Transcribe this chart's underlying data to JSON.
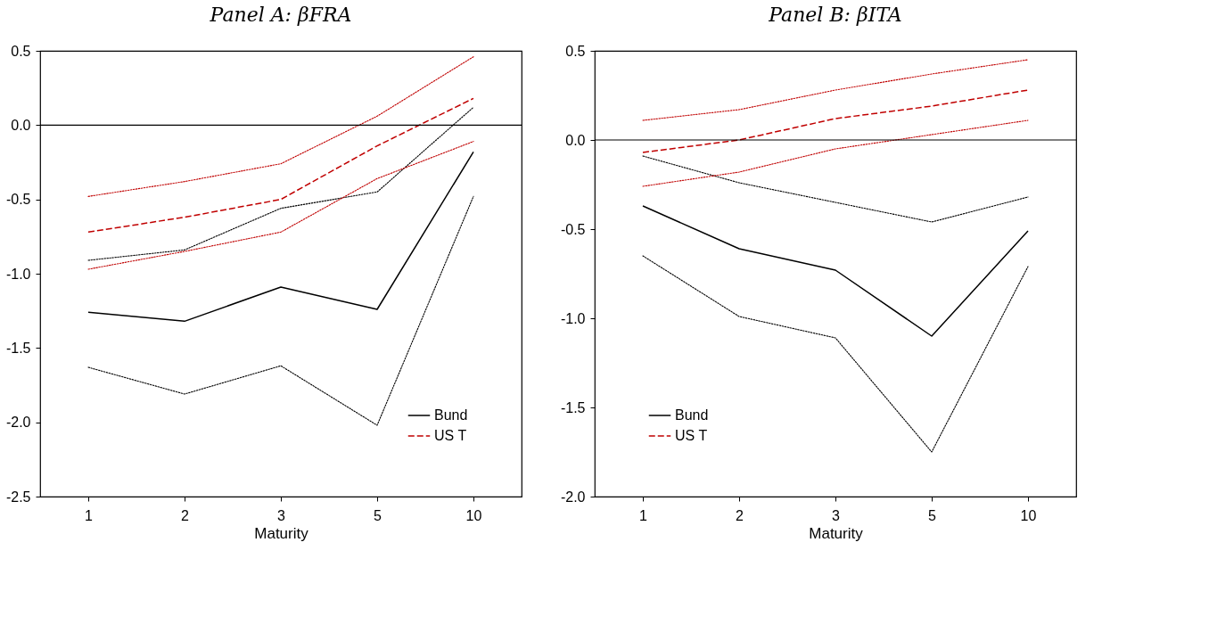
{
  "chart_data": [
    {
      "type": "line",
      "title": "Panel A: βFRA",
      "xlabel": "Maturity",
      "categories": [
        "1",
        "2",
        "3",
        "5",
        "10"
      ],
      "series": [
        {
          "name": "Bund",
          "color": "#000000",
          "line_style": "solid",
          "values": [
            -1.26,
            -1.32,
            -1.09,
            -1.24,
            -0.18
          ]
        },
        {
          "name": "US T",
          "color": "#c00000",
          "line_style": "dashed",
          "values": [
            -0.72,
            -0.62,
            -0.5,
            -0.14,
            0.18
          ]
        },
        {
          "color": "#000000",
          "line_style": "dotted",
          "values": [
            -1.63,
            -1.81,
            -1.62,
            -2.02,
            -0.48
          ]
        },
        {
          "color": "#000000",
          "line_style": "dotted",
          "values": [
            -0.91,
            -0.84,
            -0.56,
            -0.45,
            0.12
          ]
        },
        {
          "color": "#c00000",
          "line_style": "dotted",
          "values": [
            -0.97,
            -0.85,
            -0.72,
            -0.36,
            -0.11
          ]
        },
        {
          "color": "#c00000",
          "line_style": "dotted",
          "values": [
            -0.48,
            -0.38,
            -0.26,
            0.06,
            0.46
          ]
        }
      ],
      "ylim": [
        -2.5,
        0.5
      ],
      "yticks": [
        {
          "value": -2.5,
          "label": "-2.5"
        },
        {
          "value": -2.0,
          "label": "-2.0"
        },
        {
          "value": -1.5,
          "label": "-1.5"
        },
        {
          "value": -1.0,
          "label": "-1.0"
        },
        {
          "value": -0.5,
          "label": "-0.5"
        },
        {
          "value": 0.0,
          "label": "0.0"
        },
        0.5
      ],
      "ref_lines": [
        {
          "axis": "y",
          "value": 0,
          "color": "#000000"
        }
      ],
      "grid": false,
      "legend": "bottom right"
    },
    {
      "type": "line",
      "title": "Panel B: βITA",
      "xlabel": "Maturity",
      "categories": [
        "1",
        "2",
        "3",
        "5",
        "10"
      ],
      "series": [
        {
          "name": "Bund",
          "color": "#000000",
          "line_style": "solid",
          "values": [
            -0.37,
            -0.61,
            -0.73,
            -1.1,
            -0.51
          ]
        },
        {
          "name": "US T",
          "color": "#c00000",
          "line_style": "dashed",
          "values": [
            -0.07,
            0.0,
            0.12,
            0.19,
            0.28
          ]
        },
        {
          "color": "#000000",
          "line_style": "dotted",
          "values": [
            -0.65,
            -0.99,
            -1.11,
            -1.75,
            -0.71
          ]
        },
        {
          "color": "#000000",
          "line_style": "dotted",
          "values": [
            -0.09,
            -0.24,
            -0.35,
            -0.46,
            -0.32
          ]
        },
        {
          "color": "#c00000",
          "line_style": "dotted",
          "values": [
            -0.26,
            -0.18,
            -0.05,
            0.03,
            0.11
          ]
        },
        {
          "color": "#c00000",
          "line_style": "dotted",
          "values": [
            0.11,
            0.17,
            0.28,
            0.37,
            0.45
          ]
        }
      ],
      "ylim": [
        -2.0,
        0.5
      ],
      "yticks": [
        {
          "value": -2.0,
          "label": "-2.0"
        },
        {
          "value": -1.5,
          "label": "-1.5"
        },
        {
          "value": -1.0,
          "label": "-1.0"
        },
        {
          "value": -0.5,
          "label": "-0.5"
        },
        {
          "value": 0.0,
          "label": "0.0"
        },
        0.5
      ],
      "ref_lines": [
        {
          "axis": "y",
          "value": 0,
          "color": "#000000"
        }
      ],
      "grid": false,
      "legend": "bottom left"
    }
  ]
}
